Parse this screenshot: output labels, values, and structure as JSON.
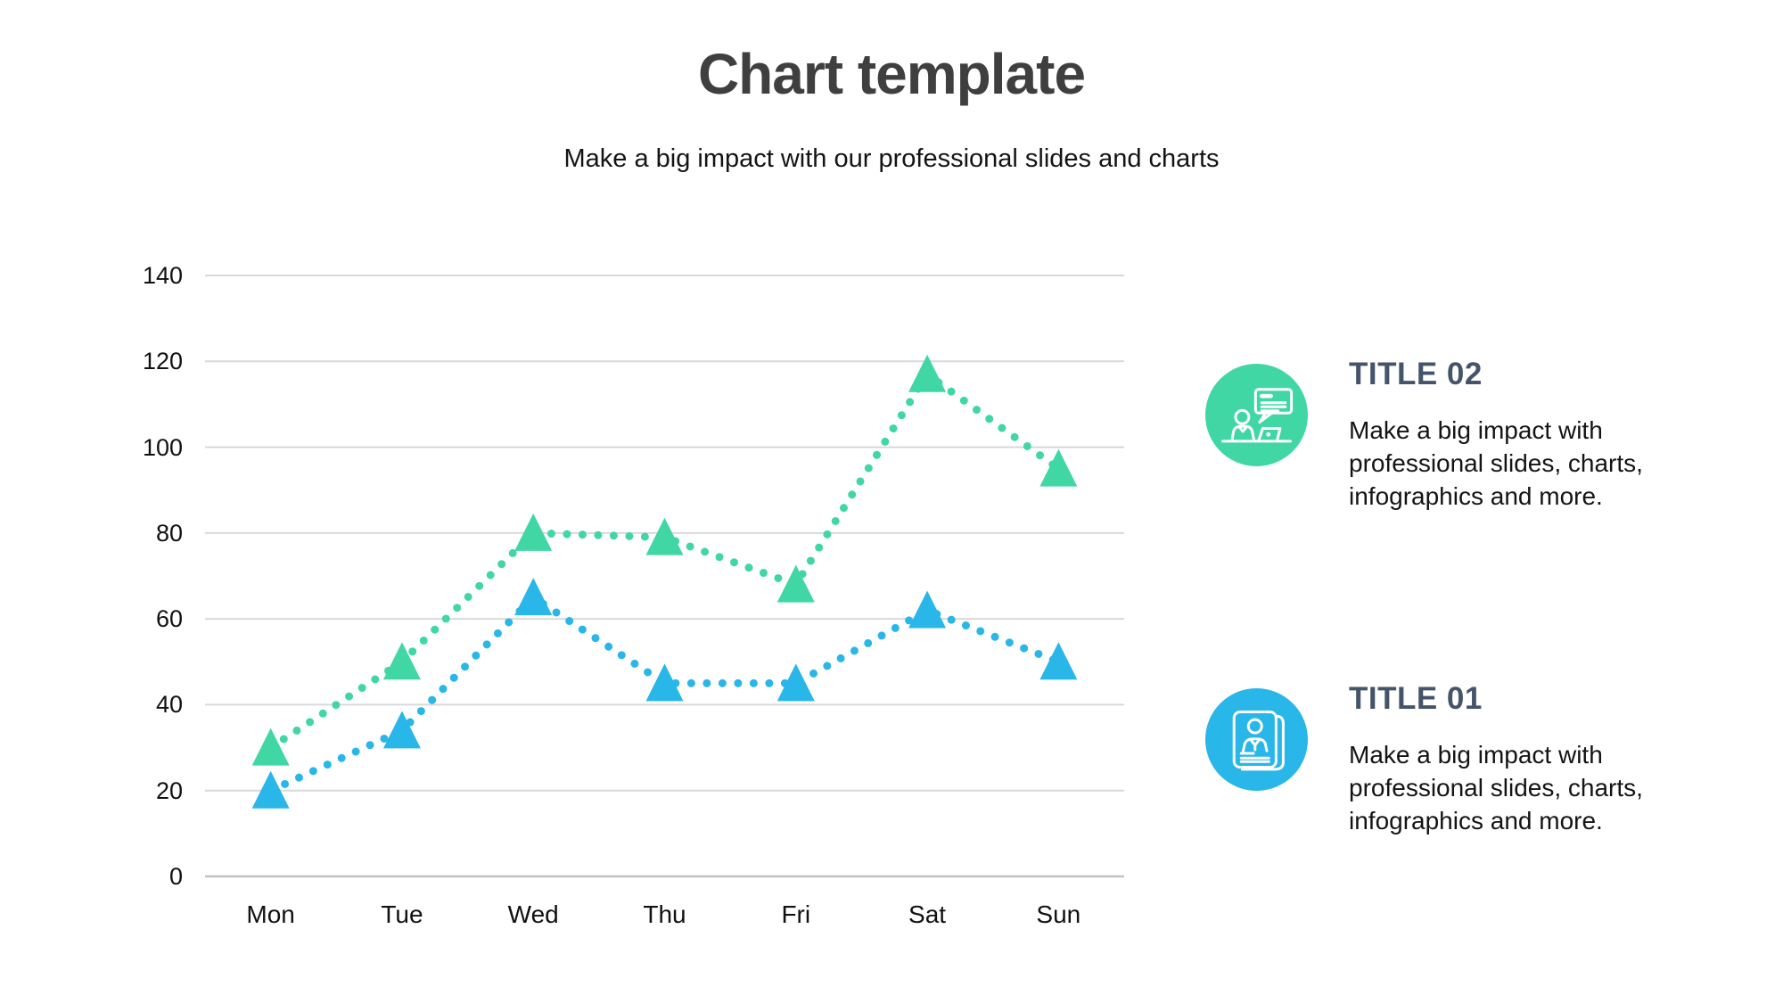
{
  "header": {
    "title": "Chart template",
    "subtitle": "Make a big impact with our professional slides and charts"
  },
  "chart_data": {
    "type": "line",
    "categories": [
      "Mon",
      "Tue",
      "Wed",
      "Thu",
      "Fri",
      "Sat",
      "Sun"
    ],
    "series": [
      {
        "name": "Title 02",
        "color": "#41d7a5",
        "marker": "triangle",
        "line_style": "dotted",
        "values": [
          30,
          50,
          80,
          79,
          68,
          117,
          95
        ]
      },
      {
        "name": "Title 01",
        "color": "#29b6e8",
        "marker": "triangle",
        "line_style": "dotted",
        "values": [
          20,
          34,
          65,
          45,
          45,
          62,
          50
        ]
      }
    ],
    "ylim": [
      0,
      140
    ],
    "yticks": [
      0,
      20,
      40,
      60,
      80,
      100,
      120,
      140
    ],
    "grid": "horizontal",
    "grid_color": "#d9d9d9",
    "baseline_color": "#c3c3c3",
    "legend": "none"
  },
  "info_blocks": [
    {
      "title": "TITLE 02",
      "description": "Make a big impact with professional slides, charts, infographics and more.",
      "accent_color": "#41d7a5",
      "icon": "presentation-person-icon"
    },
    {
      "title": "TITLE 01",
      "description": "Make a big impact with professional slides, charts, infographics and more.",
      "accent_color": "#29b6e8",
      "icon": "profile-document-icon"
    }
  ],
  "colors": {
    "title_text": "#3f3f3f",
    "body_text": "#141414",
    "heading_text": "#44546a",
    "series_green": "#41d7a5",
    "series_blue": "#29b6e8",
    "gridline": "#d9d9d9"
  }
}
